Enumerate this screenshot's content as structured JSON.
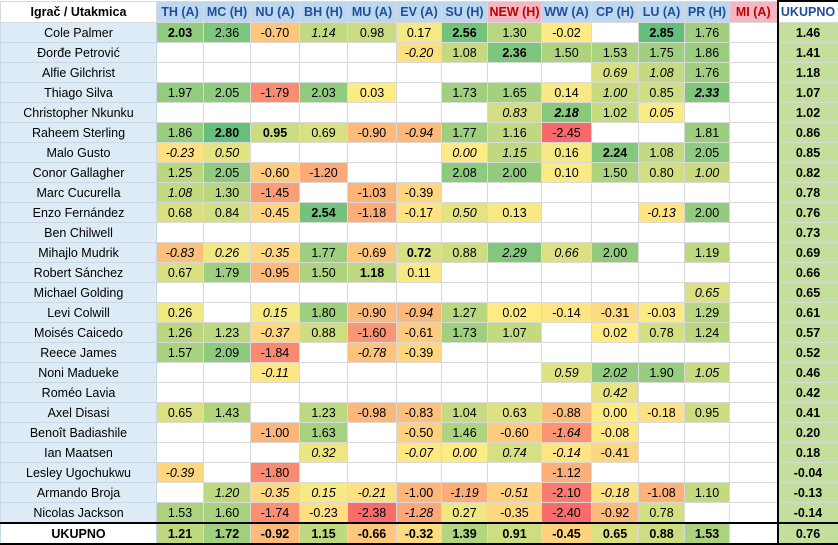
{
  "header": {
    "corner": "Igrač / Utakmica",
    "columns": [
      {
        "label": "TH (A)",
        "bg": "#bdd7ee",
        "color": "#1f4e9a"
      },
      {
        "label": "MC (H)",
        "bg": "#bdd7ee",
        "color": "#1f4e9a"
      },
      {
        "label": "NU (A)",
        "bg": "#bdd7ee",
        "color": "#1f4e9a"
      },
      {
        "label": "BH (H)",
        "bg": "#bdd7ee",
        "color": "#1f4e9a"
      },
      {
        "label": "MU (A)",
        "bg": "#bdd7ee",
        "color": "#1f4e9a"
      },
      {
        "label": "EV (A)",
        "bg": "#bdd7ee",
        "color": "#1f4e9a"
      },
      {
        "label": "SU (H)",
        "bg": "#bdd7ee",
        "color": "#1f4e9a"
      },
      {
        "label": "NEW (H)",
        "bg": "#f4b6c2",
        "color": "#c00000"
      },
      {
        "label": "WW (A)",
        "bg": "#bdd7ee",
        "color": "#1f4e9a"
      },
      {
        "label": "CP (H)",
        "bg": "#bdd7ee",
        "color": "#1f4e9a"
      },
      {
        "label": "LU (A)",
        "bg": "#bdd7ee",
        "color": "#1f4e9a"
      },
      {
        "label": "PR (H)",
        "bg": "#bdd7ee",
        "color": "#1f4e9a"
      },
      {
        "label": "MI (A)",
        "bg": "#f4b6c2",
        "color": "#c00000"
      }
    ],
    "total": "UKUPNO"
  },
  "rows": [
    {
      "name": "Cole Palmer",
      "cells": [
        {
          "v": "2.03",
          "b": 1
        },
        {
          "v": "2.36"
        },
        {
          "v": "-0.70"
        },
        {
          "v": "1.14",
          "i": 1
        },
        {
          "v": "0.98"
        },
        {
          "v": "0.17"
        },
        {
          "v": "2.56",
          "b": 1
        },
        {
          "v": "1.30"
        },
        {
          "v": "-0.02"
        },
        {
          "v": ""
        },
        {
          "v": "2.85",
          "b": 1
        },
        {
          "v": "1.76"
        },
        {
          "v": ""
        }
      ],
      "total": "1.46"
    },
    {
      "name": "Đorđe Petrović",
      "cells": [
        {
          "v": ""
        },
        {
          "v": ""
        },
        {
          "v": ""
        },
        {
          "v": ""
        },
        {
          "v": ""
        },
        {
          "v": "-0.20",
          "i": 1
        },
        {
          "v": "1.08"
        },
        {
          "v": "2.36",
          "b": 1
        },
        {
          "v": "1.50"
        },
        {
          "v": "1.53"
        },
        {
          "v": "1.75"
        },
        {
          "v": "1.86"
        },
        {
          "v": ""
        }
      ],
      "total": "1.41"
    },
    {
      "name": "Alfie Gilchrist",
      "cells": [
        {
          "v": ""
        },
        {
          "v": ""
        },
        {
          "v": ""
        },
        {
          "v": ""
        },
        {
          "v": ""
        },
        {
          "v": ""
        },
        {
          "v": ""
        },
        {
          "v": ""
        },
        {
          "v": ""
        },
        {
          "v": "0.69",
          "i": 1
        },
        {
          "v": "1.08",
          "i": 1
        },
        {
          "v": "1.76"
        },
        {
          "v": ""
        }
      ],
      "total": "1.18"
    },
    {
      "name": "Thiago Silva",
      "cells": [
        {
          "v": "1.97"
        },
        {
          "v": "2.05"
        },
        {
          "v": "-1.79"
        },
        {
          "v": "2.03"
        },
        {
          "v": "0.03"
        },
        {
          "v": ""
        },
        {
          "v": "1.73"
        },
        {
          "v": "1.65"
        },
        {
          "v": "0.14"
        },
        {
          "v": "1.00",
          "i": 1
        },
        {
          "v": "0.85"
        },
        {
          "v": "2.33",
          "b": 1,
          "i": 1
        },
        {
          "v": ""
        }
      ],
      "total": "1.07"
    },
    {
      "name": "Christopher Nkunku",
      "cells": [
        {
          "v": ""
        },
        {
          "v": ""
        },
        {
          "v": ""
        },
        {
          "v": ""
        },
        {
          "v": ""
        },
        {
          "v": ""
        },
        {
          "v": ""
        },
        {
          "v": "0.83",
          "i": 1
        },
        {
          "v": "2.18",
          "b": 1,
          "i": 1
        },
        {
          "v": "1.02"
        },
        {
          "v": "0.05",
          "i": 1
        },
        {
          "v": ""
        },
        {
          "v": ""
        }
      ],
      "total": "1.02"
    },
    {
      "name": "Raheem Sterling",
      "cells": [
        {
          "v": "1.86"
        },
        {
          "v": "2.80",
          "b": 1
        },
        {
          "v": "0.95",
          "b": 1
        },
        {
          "v": "0.69"
        },
        {
          "v": "-0.90"
        },
        {
          "v": "-0.94",
          "i": 1
        },
        {
          "v": "1.77"
        },
        {
          "v": "1.16"
        },
        {
          "v": "-2.45"
        },
        {
          "v": ""
        },
        {
          "v": ""
        },
        {
          "v": "1.81"
        },
        {
          "v": ""
        }
      ],
      "total": "0.86"
    },
    {
      "name": "Malo Gusto",
      "cells": [
        {
          "v": "-0.23",
          "i": 1
        },
        {
          "v": "0.50",
          "i": 1
        },
        {
          "v": ""
        },
        {
          "v": ""
        },
        {
          "v": ""
        },
        {
          "v": ""
        },
        {
          "v": "0.00",
          "i": 1
        },
        {
          "v": "1.15",
          "i": 1
        },
        {
          "v": "0.16"
        },
        {
          "v": "2.24",
          "b": 1
        },
        {
          "v": "1.08"
        },
        {
          "v": "2.05"
        },
        {
          "v": ""
        }
      ],
      "total": "0.85"
    },
    {
      "name": "Conor Gallagher",
      "cells": [
        {
          "v": "1.25"
        },
        {
          "v": "2.05"
        },
        {
          "v": "-0.60"
        },
        {
          "v": "-1.20"
        },
        {
          "v": ""
        },
        {
          "v": ""
        },
        {
          "v": "2.08"
        },
        {
          "v": "2.00"
        },
        {
          "v": "0.10"
        },
        {
          "v": "1.50"
        },
        {
          "v": "0.80"
        },
        {
          "v": "1.00",
          "i": 1
        },
        {
          "v": ""
        }
      ],
      "total": "0.82"
    },
    {
      "name": "Marc Cucurella",
      "cells": [
        {
          "v": "1.08",
          "i": 1
        },
        {
          "v": "1.30"
        },
        {
          "v": "-1.45"
        },
        {
          "v": ""
        },
        {
          "v": "-1.03"
        },
        {
          "v": "-0.39"
        },
        {
          "v": ""
        },
        {
          "v": ""
        },
        {
          "v": ""
        },
        {
          "v": ""
        },
        {
          "v": ""
        },
        {
          "v": ""
        },
        {
          "v": ""
        }
      ],
      "total": "0.78"
    },
    {
      "name": "Enzo Fernández",
      "cells": [
        {
          "v": "0.68"
        },
        {
          "v": "0.84"
        },
        {
          "v": "-0.45"
        },
        {
          "v": "2.54",
          "b": 1
        },
        {
          "v": "-1.18"
        },
        {
          "v": "-0.17"
        },
        {
          "v": "0.50",
          "i": 1
        },
        {
          "v": "0.13"
        },
        {
          "v": ""
        },
        {
          "v": ""
        },
        {
          "v": "-0.13",
          "i": 1
        },
        {
          "v": "2.00"
        },
        {
          "v": ""
        }
      ],
      "total": "0.76"
    },
    {
      "name": "Ben Chilwell",
      "cells": [
        {
          "v": ""
        },
        {
          "v": ""
        },
        {
          "v": ""
        },
        {
          "v": ""
        },
        {
          "v": ""
        },
        {
          "v": ""
        },
        {
          "v": ""
        },
        {
          "v": ""
        },
        {
          "v": ""
        },
        {
          "v": ""
        },
        {
          "v": ""
        },
        {
          "v": ""
        },
        {
          "v": ""
        }
      ],
      "total": "0.73"
    },
    {
      "name": "Mihajlo Mudrik",
      "cells": [
        {
          "v": "-0.83",
          "i": 1
        },
        {
          "v": "0.26",
          "i": 1
        },
        {
          "v": "-0.35",
          "i": 1
        },
        {
          "v": "1.77"
        },
        {
          "v": "-0.69"
        },
        {
          "v": "0.72",
          "b": 1
        },
        {
          "v": "0.88"
        },
        {
          "v": "2.29",
          "i": 1
        },
        {
          "v": "0.66",
          "i": 1
        },
        {
          "v": "2.00"
        },
        {
          "v": ""
        },
        {
          "v": "1.19"
        },
        {
          "v": ""
        }
      ],
      "total": "0.69"
    },
    {
      "name": "Robert Sánchez",
      "cells": [
        {
          "v": "0.67"
        },
        {
          "v": "1.79"
        },
        {
          "v": "-0.95"
        },
        {
          "v": "1.50"
        },
        {
          "v": "1.18",
          "b": 1
        },
        {
          "v": "0.11"
        },
        {
          "v": ""
        },
        {
          "v": ""
        },
        {
          "v": ""
        },
        {
          "v": ""
        },
        {
          "v": ""
        },
        {
          "v": ""
        },
        {
          "v": ""
        }
      ],
      "total": "0.66"
    },
    {
      "name": "Michael Golding",
      "cells": [
        {
          "v": ""
        },
        {
          "v": ""
        },
        {
          "v": ""
        },
        {
          "v": ""
        },
        {
          "v": ""
        },
        {
          "v": ""
        },
        {
          "v": ""
        },
        {
          "v": ""
        },
        {
          "v": ""
        },
        {
          "v": ""
        },
        {
          "v": ""
        },
        {
          "v": "0.65",
          "i": 1
        },
        {
          "v": ""
        }
      ],
      "total": "0.65"
    },
    {
      "name": "Levi Colwill",
      "cells": [
        {
          "v": "0.26"
        },
        {
          "v": ""
        },
        {
          "v": "0.15",
          "i": 1
        },
        {
          "v": "1.80"
        },
        {
          "v": "-0.90"
        },
        {
          "v": "-0.94",
          "i": 1
        },
        {
          "v": "1.27"
        },
        {
          "v": "0.02"
        },
        {
          "v": "-0.14"
        },
        {
          "v": "-0.31"
        },
        {
          "v": "-0.03"
        },
        {
          "v": "1.29"
        },
        {
          "v": ""
        }
      ],
      "total": "0.61"
    },
    {
      "name": "Moisés Caicedo",
      "cells": [
        {
          "v": "1.26"
        },
        {
          "v": "1.23"
        },
        {
          "v": "-0.37",
          "i": 1
        },
        {
          "v": "0.88"
        },
        {
          "v": "-1.60"
        },
        {
          "v": "-0.61"
        },
        {
          "v": "1.73"
        },
        {
          "v": "1.07"
        },
        {
          "v": ""
        },
        {
          "v": "0.02"
        },
        {
          "v": "0.78"
        },
        {
          "v": "1.24"
        },
        {
          "v": ""
        }
      ],
      "total": "0.57"
    },
    {
      "name": "Reece James",
      "cells": [
        {
          "v": "1.57"
        },
        {
          "v": "2.09"
        },
        {
          "v": "-1.84"
        },
        {
          "v": ""
        },
        {
          "v": "-0.78",
          "i": 1
        },
        {
          "v": "-0.39"
        },
        {
          "v": ""
        },
        {
          "v": ""
        },
        {
          "v": ""
        },
        {
          "v": ""
        },
        {
          "v": ""
        },
        {
          "v": ""
        },
        {
          "v": ""
        }
      ],
      "total": "0.52"
    },
    {
      "name": "Noni Madueke",
      "cells": [
        {
          "v": ""
        },
        {
          "v": ""
        },
        {
          "v": "-0.11",
          "i": 1
        },
        {
          "v": ""
        },
        {
          "v": ""
        },
        {
          "v": ""
        },
        {
          "v": ""
        },
        {
          "v": ""
        },
        {
          "v": "0.59",
          "i": 1
        },
        {
          "v": "2.02",
          "i": 1
        },
        {
          "v": "1.90"
        },
        {
          "v": "1.05",
          "i": 1
        },
        {
          "v": ""
        }
      ],
      "total": "0.46"
    },
    {
      "name": "Roméo Lavia",
      "cells": [
        {
          "v": ""
        },
        {
          "v": ""
        },
        {
          "v": ""
        },
        {
          "v": ""
        },
        {
          "v": ""
        },
        {
          "v": ""
        },
        {
          "v": ""
        },
        {
          "v": ""
        },
        {
          "v": ""
        },
        {
          "v": "0.42",
          "i": 1
        },
        {
          "v": ""
        },
        {
          "v": ""
        },
        {
          "v": ""
        }
      ],
      "total": "0.42"
    },
    {
      "name": "Axel Disasi",
      "cells": [
        {
          "v": "0.65"
        },
        {
          "v": "1.43"
        },
        {
          "v": ""
        },
        {
          "v": "1.23"
        },
        {
          "v": "-0.98"
        },
        {
          "v": "-0.83"
        },
        {
          "v": "1.04"
        },
        {
          "v": "0.63"
        },
        {
          "v": "-0.88"
        },
        {
          "v": "0.00"
        },
        {
          "v": "-0.18"
        },
        {
          "v": "0.95"
        },
        {
          "v": ""
        }
      ],
      "total": "0.41"
    },
    {
      "name": "Benoît Badiashile",
      "cells": [
        {
          "v": ""
        },
        {
          "v": ""
        },
        {
          "v": "-1.00"
        },
        {
          "v": "1.63"
        },
        {
          "v": ""
        },
        {
          "v": "-0.50"
        },
        {
          "v": "1.46"
        },
        {
          "v": "-0.60"
        },
        {
          "v": "-1.64",
          "i": 1
        },
        {
          "v": "-0.08"
        },
        {
          "v": ""
        },
        {
          "v": ""
        },
        {
          "v": ""
        }
      ],
      "total": "0.20"
    },
    {
      "name": "Ian Maatsen",
      "cells": [
        {
          "v": ""
        },
        {
          "v": ""
        },
        {
          "v": ""
        },
        {
          "v": "0.32",
          "i": 1
        },
        {
          "v": ""
        },
        {
          "v": "-0.07",
          "i": 1
        },
        {
          "v": "0.00",
          "i": 1
        },
        {
          "v": "0.74",
          "i": 1
        },
        {
          "v": "-0.14",
          "i": 1
        },
        {
          "v": "-0.41"
        },
        {
          "v": ""
        },
        {
          "v": ""
        },
        {
          "v": ""
        }
      ],
      "total": "0.18"
    },
    {
      "name": "Lesley Ugochukwu",
      "cells": [
        {
          "v": "-0.39",
          "i": 1
        },
        {
          "v": ""
        },
        {
          "v": "-1.80"
        },
        {
          "v": ""
        },
        {
          "v": ""
        },
        {
          "v": ""
        },
        {
          "v": ""
        },
        {
          "v": ""
        },
        {
          "v": "-1.12"
        },
        {
          "v": ""
        },
        {
          "v": ""
        },
        {
          "v": ""
        },
        {
          "v": ""
        }
      ],
      "total": "-0.04"
    },
    {
      "name": "Armando Broja",
      "cells": [
        {
          "v": ""
        },
        {
          "v": "1.20",
          "i": 1
        },
        {
          "v": "-0.35",
          "i": 1
        },
        {
          "v": "0.15",
          "i": 1
        },
        {
          "v": "-0.21",
          "i": 1
        },
        {
          "v": "-1.00"
        },
        {
          "v": "-1.19",
          "i": 1
        },
        {
          "v": "-0.51",
          "i": 1
        },
        {
          "v": "-2.10"
        },
        {
          "v": "-0.18",
          "i": 1
        },
        {
          "v": "-1.08"
        },
        {
          "v": "1.10"
        },
        {
          "v": ""
        }
      ],
      "total": "-0.13"
    },
    {
      "name": "Nicolas Jackson",
      "cells": [
        {
          "v": "1.53"
        },
        {
          "v": "1.60"
        },
        {
          "v": "-1.74"
        },
        {
          "v": "-0.23"
        },
        {
          "v": "-2.38"
        },
        {
          "v": "-1.28",
          "i": 1
        },
        {
          "v": "0.27"
        },
        {
          "v": "-0.35"
        },
        {
          "v": "-2.40"
        },
        {
          "v": "-0.92"
        },
        {
          "v": "0.78"
        },
        {
          "v": ""
        },
        {
          "v": ""
        }
      ],
      "total": "-0.14"
    }
  ],
  "footer": {
    "label": "UKUPNO",
    "cells": [
      "1.21",
      "1.72",
      "-0.92",
      "1.15",
      "-0.66",
      "-0.32",
      "1.39",
      "0.91",
      "-0.45",
      "0.65",
      "0.88",
      "1.53",
      ""
    ],
    "total": "0.76"
  }
}
